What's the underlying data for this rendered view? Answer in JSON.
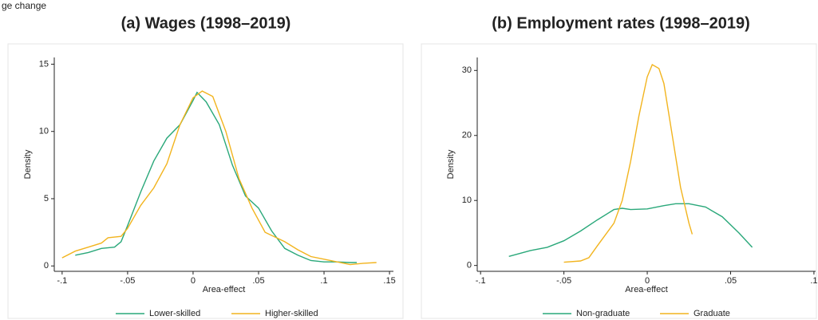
{
  "header": "ge change",
  "chart_data": [
    {
      "type": "line",
      "title": "(a) Wages (1998–2019)",
      "x_label": "Area-effect",
      "y_label": "Density",
      "xlim": [
        -0.106,
        0.153
      ],
      "ylim": [
        -0.4,
        15.5
      ],
      "xticks": [
        {
          "value": -0.1,
          "label": "-.1"
        },
        {
          "value": -0.05,
          "label": "-.05"
        },
        0,
        {
          "value": 0.05,
          "label": ".05"
        },
        {
          "value": 0.1,
          "label": ".1"
        },
        {
          "value": 0.15,
          "label": ".15"
        }
      ],
      "yticks": [
        0,
        5,
        10,
        15
      ],
      "series": [
        {
          "name": "Lower-skilled",
          "color": "#2aa87a",
          "x": [
            -0.09,
            -0.08,
            -0.07,
            -0.06,
            -0.055,
            -0.05,
            -0.04,
            -0.03,
            -0.02,
            -0.01,
            0,
            0.003,
            0.01,
            0.02,
            0.03,
            0.04,
            0.05,
            0.06,
            0.07,
            0.08,
            0.09,
            0.1,
            0.11,
            0.12,
            0.125
          ],
          "values": [
            0.8,
            1.0,
            1.3,
            1.4,
            1.8,
            3.0,
            5.5,
            7.8,
            9.5,
            10.5,
            12.3,
            12.9,
            12.2,
            10.5,
            7.5,
            5.2,
            4.3,
            2.6,
            1.3,
            0.8,
            0.4,
            0.3,
            0.3,
            0.25,
            0.25
          ]
        },
        {
          "name": "Higher-skilled",
          "color": "#f2b41e",
          "x": [
            -0.1,
            -0.09,
            -0.08,
            -0.07,
            -0.065,
            -0.055,
            -0.05,
            -0.04,
            -0.03,
            -0.02,
            -0.01,
            0,
            0.007,
            0.015,
            0.025,
            0.035,
            0.045,
            0.055,
            0.07,
            0.08,
            0.09,
            0.1,
            0.11,
            0.12,
            0.13,
            0.14
          ],
          "values": [
            0.6,
            1.1,
            1.4,
            1.7,
            2.1,
            2.2,
            2.8,
            4.5,
            5.8,
            7.6,
            10.5,
            12.5,
            13.0,
            12.6,
            10.0,
            6.5,
            4.3,
            2.5,
            1.8,
            1.2,
            0.7,
            0.5,
            0.3,
            0.1,
            0.2,
            0.25
          ]
        }
      ]
    },
    {
      "type": "line",
      "title": "(b) Employment rates (1998–2019)",
      "x_label": "Area-effect",
      "y_label": "Density",
      "xlim": [
        -0.102,
        0.101
      ],
      "ylim": [
        -0.9,
        32
      ],
      "xticks": [
        {
          "value": -0.1,
          "label": "-.1"
        },
        {
          "value": -0.05,
          "label": "-.05"
        },
        0,
        {
          "value": 0.05,
          "label": ".05"
        },
        {
          "value": 0.1,
          "label": ".1"
        }
      ],
      "yticks": [
        0,
        10,
        20,
        30
      ],
      "series": [
        {
          "name": "Non-graduate",
          "color": "#2aa87a",
          "x": [
            -0.083,
            -0.07,
            -0.06,
            -0.05,
            -0.04,
            -0.03,
            -0.02,
            -0.015,
            -0.01,
            0,
            0.01,
            0.017,
            0.025,
            0.035,
            0.045,
            0.055,
            0.063
          ],
          "values": [
            1.4,
            2.3,
            2.8,
            3.8,
            5.3,
            7.0,
            8.6,
            8.8,
            8.6,
            8.7,
            9.2,
            9.5,
            9.5,
            9.0,
            7.5,
            5.0,
            2.8
          ]
        },
        {
          "name": "Graduate",
          "color": "#f2b41e",
          "x": [
            -0.05,
            -0.04,
            -0.035,
            -0.03,
            -0.02,
            -0.015,
            -0.01,
            -0.005,
            0,
            0.003,
            0.007,
            0.01,
            0.015,
            0.02,
            0.025,
            0.027
          ],
          "values": [
            0.5,
            0.7,
            1.2,
            3.0,
            6.5,
            10,
            16,
            23,
            29,
            30.9,
            30.3,
            28,
            20,
            12,
            6.5,
            4.8
          ]
        }
      ]
    }
  ]
}
